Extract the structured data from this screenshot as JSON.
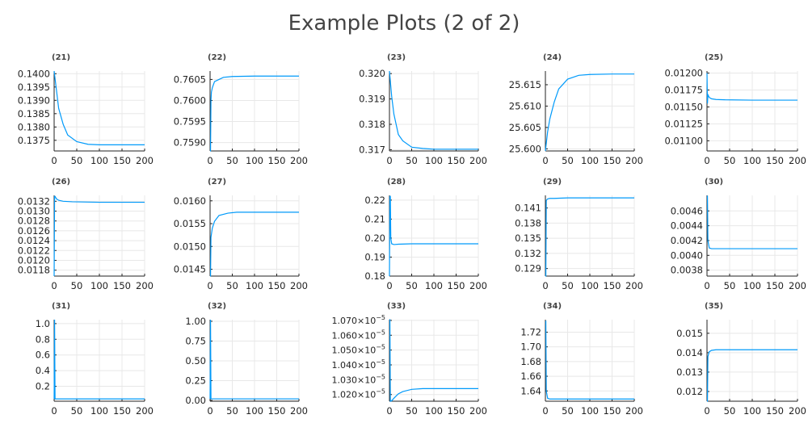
{
  "figure": {
    "title": "Example Plots (2 of 2)"
  },
  "colors": {
    "series": "#009AFA"
  },
  "chart_data": [
    {
      "type": "line",
      "title": "(21)",
      "xlim": [
        0,
        200
      ],
      "ylim": [
        0.1371,
        0.1401
      ],
      "xticks": [
        {
          "v": 0,
          "label": "0"
        },
        {
          "v": 50,
          "label": "50"
        },
        {
          "v": 100,
          "label": "100"
        },
        {
          "v": 150,
          "label": "150"
        },
        {
          "v": 200,
          "label": "200"
        }
      ],
      "yticks": [
        {
          "v": 0.1375,
          "label": "0.1375"
        },
        {
          "v": 0.138,
          "label": "0.1380"
        },
        {
          "v": 0.1385,
          "label": "0.1385"
        },
        {
          "v": 0.139,
          "label": "0.1390"
        },
        {
          "v": 0.1395,
          "label": "0.1395"
        },
        {
          "v": 0.14,
          "label": "0.1400"
        }
      ],
      "x": [
        0,
        5,
        10,
        20,
        30,
        50,
        75,
        100,
        150,
        200
      ],
      "y": [
        0.1401,
        0.1394,
        0.1387,
        0.1381,
        0.1377,
        0.13745,
        0.13735,
        0.13733,
        0.13733,
        0.13733
      ]
    },
    {
      "type": "line",
      "title": "(22)",
      "xlim": [
        0,
        200
      ],
      "ylim": [
        0.7588,
        0.7607
      ],
      "xticks": [
        {
          "v": 0,
          "label": "0"
        },
        {
          "v": 50,
          "label": "50"
        },
        {
          "v": 100,
          "label": "100"
        },
        {
          "v": 150,
          "label": "150"
        },
        {
          "v": 200,
          "label": "200"
        }
      ],
      "yticks": [
        {
          "v": 0.759,
          "label": "0.7590"
        },
        {
          "v": 0.7595,
          "label": "0.7595"
        },
        {
          "v": 0.76,
          "label": "0.7600"
        },
        {
          "v": 0.7605,
          "label": "0.7605"
        }
      ],
      "x": [
        0,
        1,
        2,
        3,
        5,
        10,
        20,
        30,
        50,
        100,
        200
      ],
      "y": [
        0.7588,
        0.7588,
        0.76,
        0.7602,
        0.7603,
        0.76045,
        0.7605,
        0.76055,
        0.76057,
        0.76058,
        0.76058
      ]
    },
    {
      "type": "line",
      "title": "(23)",
      "xlim": [
        0,
        200
      ],
      "ylim": [
        0.31695,
        0.3201
      ],
      "xticks": [
        {
          "v": 0,
          "label": "0"
        },
        {
          "v": 50,
          "label": "50"
        },
        {
          "v": 100,
          "label": "100"
        },
        {
          "v": 150,
          "label": "150"
        },
        {
          "v": 200,
          "label": "200"
        }
      ],
      "yticks": [
        {
          "v": 0.317,
          "label": "0.317"
        },
        {
          "v": 0.318,
          "label": "0.318"
        },
        {
          "v": 0.319,
          "label": "0.319"
        },
        {
          "v": 0.32,
          "label": "0.320"
        }
      ],
      "x": [
        0,
        5,
        10,
        20,
        30,
        50,
        75,
        100,
        150,
        200
      ],
      "y": [
        0.3201,
        0.3191,
        0.3184,
        0.3176,
        0.31735,
        0.3171,
        0.31705,
        0.31702,
        0.31702,
        0.31702
      ]
    },
    {
      "type": "line",
      "title": "(24)",
      "xlim": [
        0,
        200
      ],
      "ylim": [
        25.5995,
        25.6182
      ],
      "xticks": [
        {
          "v": 0,
          "label": "0"
        },
        {
          "v": 50,
          "label": "50"
        },
        {
          "v": 100,
          "label": "100"
        },
        {
          "v": 150,
          "label": "150"
        },
        {
          "v": 200,
          "label": "200"
        }
      ],
      "yticks": [
        {
          "v": 25.6,
          "label": "25.600"
        },
        {
          "v": 25.605,
          "label": "25.605"
        },
        {
          "v": 25.61,
          "label": "25.610"
        },
        {
          "v": 25.615,
          "label": "25.615"
        }
      ],
      "x": [
        0,
        5,
        10,
        20,
        30,
        50,
        75,
        100,
        150,
        200
      ],
      "y": [
        25.5995,
        25.604,
        25.607,
        25.611,
        25.614,
        25.6163,
        25.6172,
        25.6174,
        25.6175,
        25.6175
      ]
    },
    {
      "type": "line",
      "title": "(25)",
      "xlim": [
        0,
        200
      ],
      "ylim": [
        0.01085,
        0.01203
      ],
      "xticks": [
        {
          "v": 0,
          "label": "0"
        },
        {
          "v": 50,
          "label": "50"
        },
        {
          "v": 100,
          "label": "100"
        },
        {
          "v": 150,
          "label": "150"
        },
        {
          "v": 200,
          "label": "200"
        }
      ],
      "yticks": [
        {
          "v": 0.011,
          "label": "0.01100"
        },
        {
          "v": 0.01125,
          "label": "0.01125"
        },
        {
          "v": 0.0115,
          "label": "0.01150"
        },
        {
          "v": 0.01175,
          "label": "0.01175"
        },
        {
          "v": 0.012,
          "label": "0.01200"
        }
      ],
      "x": [
        0,
        1,
        2,
        5,
        10,
        20,
        40,
        100,
        200
      ],
      "y": [
        0.012,
        0.01155,
        0.01168,
        0.01164,
        0.01162,
        0.01161,
        0.011605,
        0.0116,
        0.0116
      ]
    },
    {
      "type": "line",
      "title": "(26)",
      "xlim": [
        0,
        200
      ],
      "ylim": [
        0.01168,
        0.01332
      ],
      "xticks": [
        {
          "v": 0,
          "label": "0"
        },
        {
          "v": 50,
          "label": "50"
        },
        {
          "v": 100,
          "label": "100"
        },
        {
          "v": 150,
          "label": "150"
        },
        {
          "v": 200,
          "label": "200"
        }
      ],
      "yticks": [
        {
          "v": 0.0118,
          "label": "0.0118"
        },
        {
          "v": 0.012,
          "label": "0.0120"
        },
        {
          "v": 0.0122,
          "label": "0.0122"
        },
        {
          "v": 0.0124,
          "label": "0.0124"
        },
        {
          "v": 0.0126,
          "label": "0.0126"
        },
        {
          "v": 0.0128,
          "label": "0.0128"
        },
        {
          "v": 0.013,
          "label": "0.0130"
        },
        {
          "v": 0.0132,
          "label": "0.0132"
        }
      ],
      "x": [
        0,
        1,
        2,
        5,
        10,
        20,
        40,
        100,
        200
      ],
      "y": [
        0.01168,
        0.0133,
        0.0133,
        0.01325,
        0.01322,
        0.0132,
        0.01319,
        0.01318,
        0.01318
      ]
    },
    {
      "type": "line",
      "title": "(27)",
      "xlim": [
        0,
        200
      ],
      "ylim": [
        0.01435,
        0.01612
      ],
      "xticks": [
        {
          "v": 0,
          "label": "0"
        },
        {
          "v": 50,
          "label": "50"
        },
        {
          "v": 100,
          "label": "100"
        },
        {
          "v": 150,
          "label": "150"
        },
        {
          "v": 200,
          "label": "200"
        }
      ],
      "yticks": [
        {
          "v": 0.0145,
          "label": "0.0145"
        },
        {
          "v": 0.015,
          "label": "0.0150"
        },
        {
          "v": 0.0155,
          "label": "0.0155"
        },
        {
          "v": 0.016,
          "label": "0.0160"
        }
      ],
      "x": [
        0,
        1,
        2,
        5,
        10,
        20,
        40,
        60,
        100,
        200
      ],
      "y": [
        0.01435,
        0.01435,
        0.0152,
        0.0154,
        0.01555,
        0.01568,
        0.01573,
        0.01575,
        0.01575,
        0.01575
      ]
    },
    {
      "type": "line",
      "title": "(28)",
      "xlim": [
        0,
        200
      ],
      "ylim": [
        0.18,
        0.2225
      ],
      "xticks": [
        {
          "v": 0,
          "label": "0"
        },
        {
          "v": 50,
          "label": "50"
        },
        {
          "v": 100,
          "label": "100"
        },
        {
          "v": 150,
          "label": "150"
        },
        {
          "v": 200,
          "label": "200"
        }
      ],
      "yticks": [
        {
          "v": 0.18,
          "label": "0.18"
        },
        {
          "v": 0.19,
          "label": "0.19"
        },
        {
          "v": 0.2,
          "label": "0.20"
        },
        {
          "v": 0.21,
          "label": "0.21"
        },
        {
          "v": 0.22,
          "label": "0.22"
        }
      ],
      "x": [
        0,
        1,
        2,
        3,
        5,
        10,
        20,
        50,
        100,
        200
      ],
      "y": [
        0.18,
        0.222,
        0.222,
        0.2,
        0.197,
        0.1966,
        0.1968,
        0.197,
        0.197,
        0.197
      ]
    },
    {
      "type": "line",
      "title": "(29)",
      "xlim": [
        0,
        200
      ],
      "ylim": [
        0.1275,
        0.1435
      ],
      "xticks": [
        {
          "v": 0,
          "label": "0"
        },
        {
          "v": 50,
          "label": "50"
        },
        {
          "v": 100,
          "label": "100"
        },
        {
          "v": 150,
          "label": "150"
        },
        {
          "v": 200,
          "label": "200"
        }
      ],
      "yticks": [
        {
          "v": 0.129,
          "label": "0.129"
        },
        {
          "v": 0.132,
          "label": "0.132"
        },
        {
          "v": 0.135,
          "label": "0.135"
        },
        {
          "v": 0.138,
          "label": "0.138"
        },
        {
          "v": 0.141,
          "label": "0.141"
        }
      ],
      "x": [
        0,
        1,
        2,
        5,
        10,
        20,
        50,
        100,
        200
      ],
      "y": [
        0.1275,
        0.1275,
        0.1425,
        0.1428,
        0.1429,
        0.1429,
        0.143,
        0.143,
        0.143
      ]
    },
    {
      "type": "line",
      "title": "(30)",
      "xlim": [
        0,
        200
      ],
      "ylim": [
        0.00372,
        0.00481
      ],
      "xticks": [
        {
          "v": 0,
          "label": "0"
        },
        {
          "v": 50,
          "label": "50"
        },
        {
          "v": 100,
          "label": "100"
        },
        {
          "v": 150,
          "label": "150"
        },
        {
          "v": 200,
          "label": "200"
        }
      ],
      "yticks": [
        {
          "v": 0.0038,
          "label": "0.0038"
        },
        {
          "v": 0.004,
          "label": "0.0040"
        },
        {
          "v": 0.0042,
          "label": "0.0042"
        },
        {
          "v": 0.0044,
          "label": "0.0044"
        },
        {
          "v": 0.0046,
          "label": "0.0046"
        }
      ],
      "x": [
        0,
        1,
        2,
        5,
        10,
        20,
        50,
        100,
        200
      ],
      "y": [
        0.0048,
        0.0048,
        0.0042,
        0.0041,
        0.00409,
        0.00409,
        0.00409,
        0.00409,
        0.00409
      ]
    },
    {
      "type": "line",
      "title": "(31)",
      "xlim": [
        0,
        200
      ],
      "ylim": [
        0.01,
        1.05
      ],
      "xticks": [
        {
          "v": 0,
          "label": "0"
        },
        {
          "v": 50,
          "label": "50"
        },
        {
          "v": 100,
          "label": "100"
        },
        {
          "v": 150,
          "label": "150"
        },
        {
          "v": 200,
          "label": "200"
        }
      ],
      "yticks": [
        {
          "v": 0.2,
          "label": "0.2"
        },
        {
          "v": 0.4,
          "label": "0.4"
        },
        {
          "v": 0.6,
          "label": "0.6"
        },
        {
          "v": 0.8,
          "label": "0.8"
        },
        {
          "v": 1.0,
          "label": "1.0"
        }
      ],
      "x": [
        0,
        1,
        2,
        200
      ],
      "y": [
        0.04,
        1.05,
        0.04,
        0.04
      ]
    },
    {
      "type": "line",
      "title": "(32)",
      "xlim": [
        0,
        200
      ],
      "ylim": [
        -0.01,
        1.02
      ],
      "xticks": [
        {
          "v": 0,
          "label": "0"
        },
        {
          "v": 50,
          "label": "50"
        },
        {
          "v": 100,
          "label": "100"
        },
        {
          "v": 150,
          "label": "150"
        },
        {
          "v": 200,
          "label": "200"
        }
      ],
      "yticks": [
        {
          "v": 0.0,
          "label": "0.00"
        },
        {
          "v": 0.25,
          "label": "0.25"
        },
        {
          "v": 0.5,
          "label": "0.50"
        },
        {
          "v": 0.75,
          "label": "0.75"
        },
        {
          "v": 1.0,
          "label": "1.00"
        }
      ],
      "x": [
        0,
        1,
        2,
        200
      ],
      "y": [
        0.02,
        1.02,
        0.02,
        0.02
      ]
    },
    {
      "type": "line",
      "title": "(33)",
      "xlim": [
        0,
        200
      ],
      "ylim": [
        1.0155e-05,
        1.0705e-05
      ],
      "xticks": [
        {
          "v": 0,
          "label": "0"
        },
        {
          "v": 50,
          "label": "50"
        },
        {
          "v": 100,
          "label": "100"
        },
        {
          "v": 150,
          "label": "150"
        },
        {
          "v": 200,
          "label": "200"
        }
      ],
      "yticks": [
        {
          "v": 1.02e-05,
          "label": "1.020×10",
          "exp": "−5"
        },
        {
          "v": 1.03e-05,
          "label": "1.030×10",
          "exp": "−5"
        },
        {
          "v": 1.04e-05,
          "label": "1.040×10",
          "exp": "−5"
        },
        {
          "v": 1.05e-05,
          "label": "1.050×10",
          "exp": "−5"
        },
        {
          "v": 1.06e-05,
          "label": "1.060×10",
          "exp": "−5"
        },
        {
          "v": 1.07e-05,
          "label": "1.070×10",
          "exp": "−5"
        }
      ],
      "x": [
        0,
        1,
        2,
        5,
        10,
        20,
        30,
        50,
        75,
        100,
        150,
        200
      ],
      "y": [
        1.0705e-05,
        1.0705e-05,
        1.0155e-05,
        1.0158e-05,
        1.0175e-05,
        1.0205e-05,
        1.022e-05,
        1.0235e-05,
        1.024e-05,
        1.024e-05,
        1.024e-05,
        1.024e-05
      ]
    },
    {
      "type": "line",
      "title": "(34)",
      "xlim": [
        0,
        200
      ],
      "ylim": [
        1.626,
        1.737
      ],
      "xticks": [
        {
          "v": 0,
          "label": "0"
        },
        {
          "v": 50,
          "label": "50"
        },
        {
          "v": 100,
          "label": "100"
        },
        {
          "v": 150,
          "label": "150"
        },
        {
          "v": 200,
          "label": "200"
        }
      ],
      "yticks": [
        {
          "v": 1.64,
          "label": "1.64"
        },
        {
          "v": 1.66,
          "label": "1.66"
        },
        {
          "v": 1.68,
          "label": "1.68"
        },
        {
          "v": 1.7,
          "label": "1.70"
        },
        {
          "v": 1.72,
          "label": "1.72"
        }
      ],
      "x": [
        0,
        1,
        2,
        5,
        10,
        20,
        50,
        100,
        200
      ],
      "y": [
        1.735,
        1.735,
        1.64,
        1.63,
        1.629,
        1.629,
        1.629,
        1.629,
        1.629
      ]
    },
    {
      "type": "line",
      "title": "(35)",
      "xlim": [
        0,
        200
      ],
      "ylim": [
        0.0115,
        0.0157
      ],
      "xticks": [
        {
          "v": 0,
          "label": "0"
        },
        {
          "v": 50,
          "label": "50"
        },
        {
          "v": 100,
          "label": "100"
        },
        {
          "v": 150,
          "label": "150"
        },
        {
          "v": 200,
          "label": "200"
        }
      ],
      "yticks": [
        {
          "v": 0.012,
          "label": "0.012"
        },
        {
          "v": 0.013,
          "label": "0.013"
        },
        {
          "v": 0.014,
          "label": "0.014"
        },
        {
          "v": 0.015,
          "label": "0.015"
        }
      ],
      "x": [
        0,
        1,
        2,
        5,
        10,
        20,
        50,
        100,
        200
      ],
      "y": [
        0.0115,
        0.0115,
        0.0138,
        0.01405,
        0.01412,
        0.01415,
        0.01415,
        0.01415,
        0.01415
      ]
    }
  ]
}
